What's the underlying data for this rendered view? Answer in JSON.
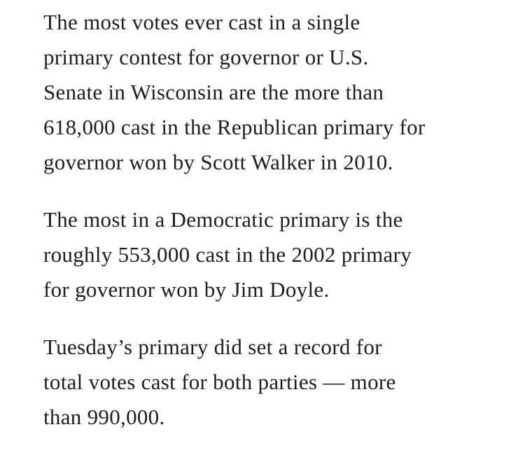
{
  "article": {
    "paragraphs": [
      {
        "lines": [
          "The most votes ever cast in a single",
          "primary contest for governor or U.S.",
          "Senate in Wisconsin are the more than",
          "618,000 cast in the Republican primary for",
          "governor won by Scott Walker in 2010."
        ]
      },
      {
        "lines": [
          "The most in a Democratic primary is the",
          "roughly 553,000 cast in the 2002 primary",
          "for governor won by Jim Doyle."
        ]
      },
      {
        "lines": [
          "Tuesday’s primary did set a record for",
          "total votes cast for both parties — more",
          "than 990,000."
        ]
      }
    ]
  }
}
